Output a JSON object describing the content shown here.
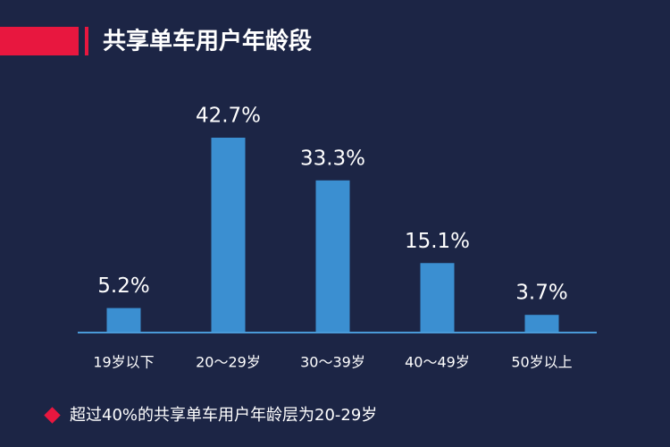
{
  "chart_data": {
    "type": "bar",
    "title": "共享单车用户年龄段",
    "categories": [
      "19岁以下",
      "20～29岁",
      "30～39岁",
      "40～49岁",
      "50岁以上"
    ],
    "values": [
      5.2,
      42.7,
      33.3,
      15.1,
      3.7
    ],
    "value_labels": [
      "5.2%",
      "42.7%",
      "33.3%",
      "15.1%",
      "3.7%"
    ],
    "color": "#3b8fd1",
    "note": "超过40%的共享单车用户年龄层为20-29岁"
  }
}
